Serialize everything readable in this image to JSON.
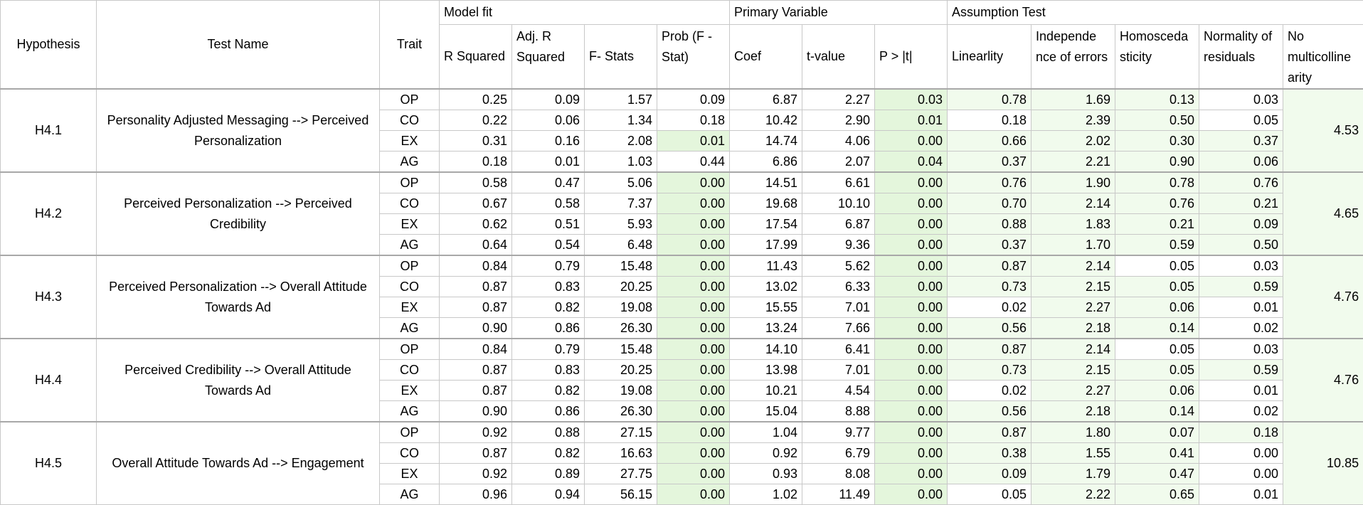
{
  "header": {
    "hypothesis": "Hypothesis",
    "test_name": "Test Name",
    "trait": "Trait",
    "model_fit": "Model fit",
    "primary_variable": "Primary Variable",
    "assumption_test": "Assumption Test",
    "cols": [
      "R Squared",
      "Adj. R Squared",
      "F- Stats",
      "Prob (F - Stat)",
      "Coef",
      "t-value",
      "P > |t|",
      "Linearlity",
      "Independe nce of errors",
      "Homosceda sticity",
      "Normality of residuals",
      "No multicolline arity"
    ]
  },
  "groups": [
    {
      "hypothesis": "H4.1",
      "test_name": "Personality Adjusted Messaging --> Perceived Personalization",
      "multicollinearity": "4.53",
      "rows": [
        {
          "trait": "OP",
          "v": [
            "0.25",
            "0.09",
            "1.57",
            "0.09",
            "6.87",
            "2.27",
            "0.03",
            "0.78",
            "1.69",
            "0.13",
            "0.03"
          ]
        },
        {
          "trait": "CO",
          "v": [
            "0.22",
            "0.06",
            "1.34",
            "0.18",
            "10.42",
            "2.90",
            "0.01",
            "0.18",
            "2.39",
            "0.50",
            "0.05"
          ]
        },
        {
          "trait": "EX",
          "v": [
            "0.31",
            "0.16",
            "2.08",
            "0.01",
            "14.74",
            "4.06",
            "0.00",
            "0.66",
            "2.02",
            "0.30",
            "0.37"
          ]
        },
        {
          "trait": "AG",
          "v": [
            "0.18",
            "0.01",
            "1.03",
            "0.44",
            "6.86",
            "2.07",
            "0.04",
            "0.37",
            "2.21",
            "0.90",
            "0.06"
          ]
        }
      ]
    },
    {
      "hypothesis": "H4.2",
      "test_name": "Perceived Personalization --> Perceived Credibility",
      "multicollinearity": "4.65",
      "rows": [
        {
          "trait": "OP",
          "v": [
            "0.58",
            "0.47",
            "5.06",
            "0.00",
            "14.51",
            "6.61",
            "0.00",
            "0.76",
            "1.90",
            "0.78",
            "0.76"
          ]
        },
        {
          "trait": "CO",
          "v": [
            "0.67",
            "0.58",
            "7.37",
            "0.00",
            "19.68",
            "10.10",
            "0.00",
            "0.70",
            "2.14",
            "0.76",
            "0.21"
          ]
        },
        {
          "trait": "EX",
          "v": [
            "0.62",
            "0.51",
            "5.93",
            "0.00",
            "17.54",
            "6.87",
            "0.00",
            "0.88",
            "1.83",
            "0.21",
            "0.09"
          ]
        },
        {
          "trait": "AG",
          "v": [
            "0.64",
            "0.54",
            "6.48",
            "0.00",
            "17.99",
            "9.36",
            "0.00",
            "0.37",
            "1.70",
            "0.59",
            "0.50"
          ]
        }
      ]
    },
    {
      "hypothesis": "H4.3",
      "test_name": "Perceived Personalization --> Overall Attitude Towards Ad",
      "multicollinearity": "4.76",
      "rows": [
        {
          "trait": "OP",
          "v": [
            "0.84",
            "0.79",
            "15.48",
            "0.00",
            "11.43",
            "5.62",
            "0.00",
            "0.87",
            "2.14",
            "0.05",
            "0.03"
          ]
        },
        {
          "trait": "CO",
          "v": [
            "0.87",
            "0.83",
            "20.25",
            "0.00",
            "13.02",
            "6.33",
            "0.00",
            "0.73",
            "2.15",
            "0.05",
            "0.59"
          ]
        },
        {
          "trait": "EX",
          "v": [
            "0.87",
            "0.82",
            "19.08",
            "0.00",
            "15.55",
            "7.01",
            "0.00",
            "0.02",
            "2.27",
            "0.06",
            "0.01"
          ]
        },
        {
          "trait": "AG",
          "v": [
            "0.90",
            "0.86",
            "26.30",
            "0.00",
            "13.24",
            "7.66",
            "0.00",
            "0.56",
            "2.18",
            "0.14",
            "0.02"
          ]
        }
      ]
    },
    {
      "hypothesis": "H4.4",
      "test_name": "Perceived Credibility --> Overall Attitude Towards Ad",
      "multicollinearity": "4.76",
      "rows": [
        {
          "trait": "OP",
          "v": [
            "0.84",
            "0.79",
            "15.48",
            "0.00",
            "14.10",
            "6.41",
            "0.00",
            "0.87",
            "2.14",
            "0.05",
            "0.03"
          ]
        },
        {
          "trait": "CO",
          "v": [
            "0.87",
            "0.83",
            "20.25",
            "0.00",
            "13.98",
            "7.01",
            "0.00",
            "0.73",
            "2.15",
            "0.05",
            "0.59"
          ]
        },
        {
          "trait": "EX",
          "v": [
            "0.87",
            "0.82",
            "19.08",
            "0.00",
            "10.21",
            "4.54",
            "0.00",
            "0.02",
            "2.27",
            "0.06",
            "0.01"
          ]
        },
        {
          "trait": "AG",
          "v": [
            "0.90",
            "0.86",
            "26.30",
            "0.00",
            "15.04",
            "8.88",
            "0.00",
            "0.56",
            "2.18",
            "0.14",
            "0.02"
          ]
        }
      ]
    },
    {
      "hypothesis": "H4.5",
      "test_name": "Overall Attitude Towards Ad --> Engagement",
      "multicollinearity": "10.85",
      "rows": [
        {
          "trait": "OP",
          "v": [
            "0.92",
            "0.88",
            "27.15",
            "0.00",
            "1.04",
            "9.77",
            "0.00",
            "0.87",
            "1.80",
            "0.07",
            "0.18"
          ]
        },
        {
          "trait": "CO",
          "v": [
            "0.87",
            "0.82",
            "16.63",
            "0.00",
            "0.92",
            "6.79",
            "0.00",
            "0.38",
            "1.55",
            "0.41",
            "0.00"
          ]
        },
        {
          "trait": "EX",
          "v": [
            "0.92",
            "0.89",
            "27.75",
            "0.00",
            "0.93",
            "8.08",
            "0.00",
            "0.09",
            "1.79",
            "0.47",
            "0.00"
          ]
        },
        {
          "trait": "AG",
          "v": [
            "0.96",
            "0.94",
            "56.15",
            "0.00",
            "1.02",
            "11.49",
            "0.00",
            "0.05",
            "2.22",
            "0.65",
            "0.01"
          ]
        }
      ]
    }
  ],
  "colors": {
    "highlight_green": "#e4f6dc",
    "light_green": "#f1fbed",
    "grid": "#c8c8c8"
  }
}
